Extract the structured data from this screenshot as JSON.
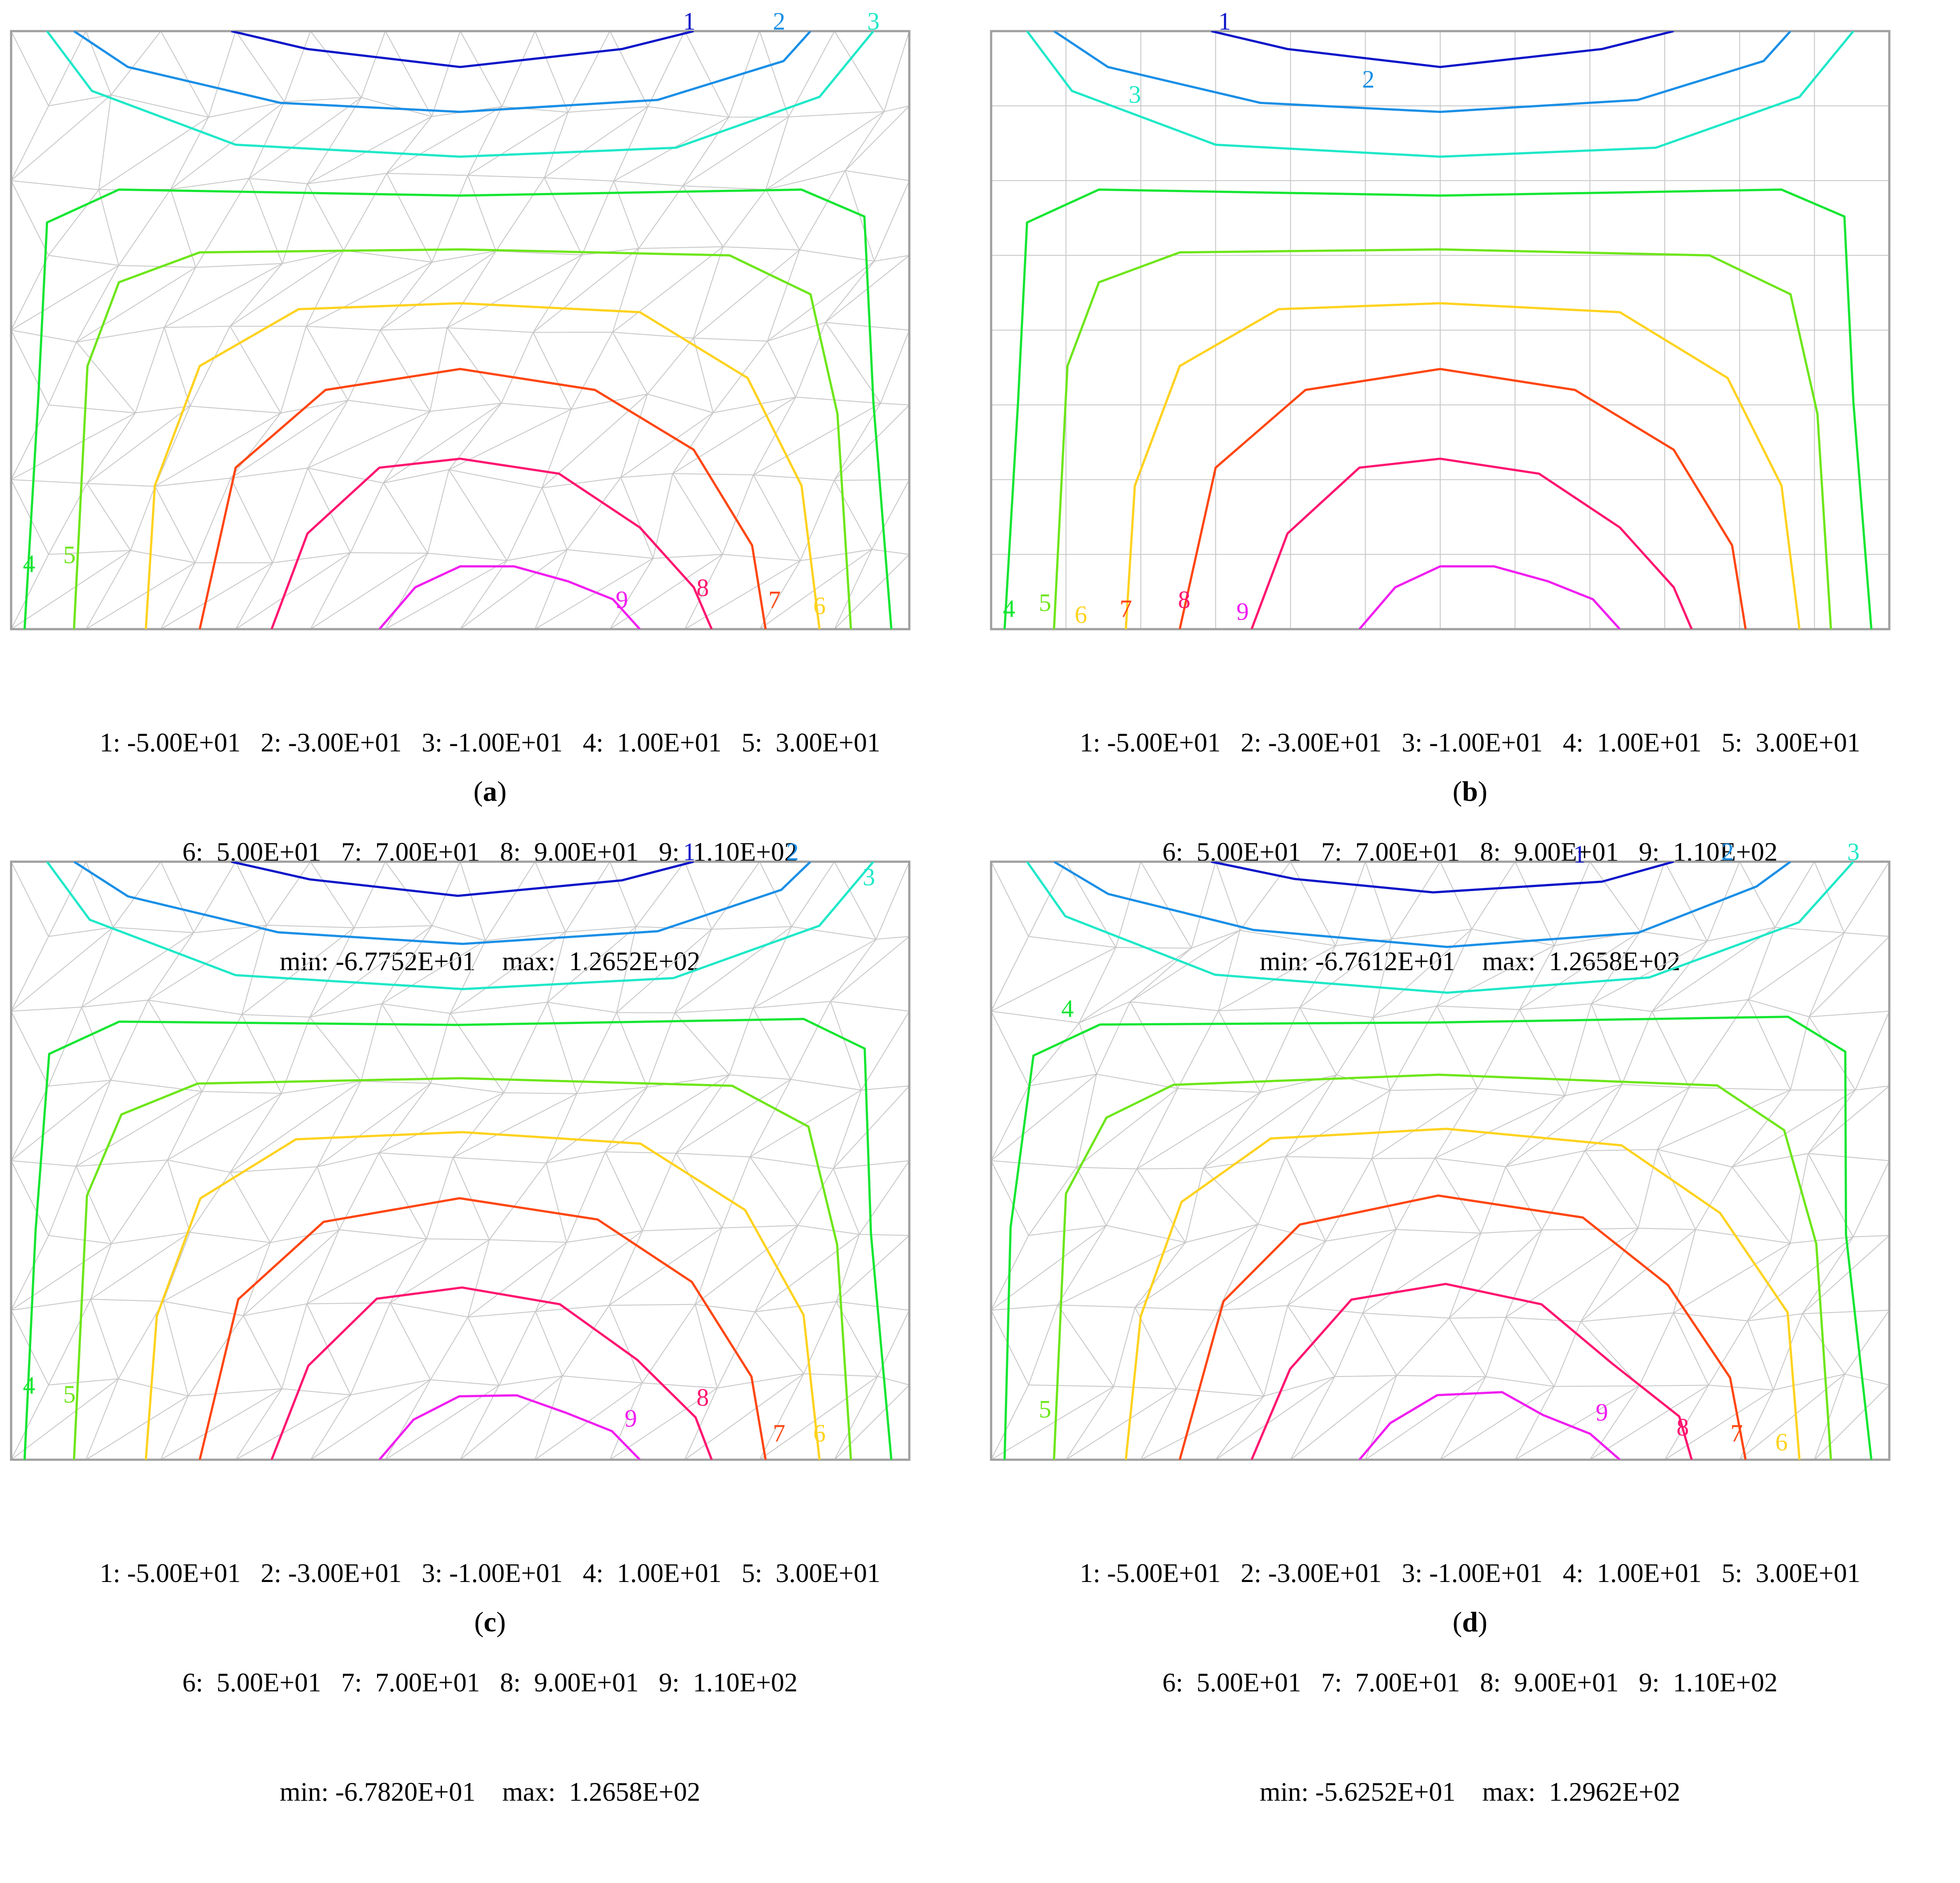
{
  "figure": {
    "contour_colors": [
      "#0a14c8",
      "#1a8fe6",
      "#1fe8c8",
      "#14e632",
      "#6ee61a",
      "#ffd21e",
      "#ff4610",
      "#ff1470",
      "#f01ef0"
    ],
    "mesh_color": "#c8c8c8",
    "frame_color": "#a0a0a0"
  },
  "chart_data": [
    {
      "type": "contour",
      "panel": "a",
      "caption_letter": "a",
      "mesh": "unstructured-triangular",
      "contour_levels": [
        {
          "label": "1",
          "value": -50
        },
        {
          "label": "2",
          "value": -30
        },
        {
          "label": "3",
          "value": -10
        },
        {
          "label": "4",
          "value": 10
        },
        {
          "label": "5",
          "value": 30
        },
        {
          "label": "6",
          "value": 50
        },
        {
          "label": "7",
          "value": 70
        },
        {
          "label": "8",
          "value": 90
        },
        {
          "label": "9",
          "value": 110
        }
      ],
      "legend_line1": "1: -5.00E+01   2: -3.00E+01   3: -1.00E+01   4:  1.00E+01   5:  3.00E+01",
      "legend_line2": "6:  5.00E+01   7:  7.00E+01   8:  9.00E+01   9:  1.10E+02",
      "range_text": "min: -6.7752E+01    max:  1.2652E+02",
      "min": -67.752,
      "max": 126.52
    },
    {
      "type": "contour",
      "panel": "b",
      "caption_letter": "b",
      "mesh": "structured-rectangular",
      "contour_levels": [
        {
          "label": "1",
          "value": -50
        },
        {
          "label": "2",
          "value": -30
        },
        {
          "label": "3",
          "value": -10
        },
        {
          "label": "4",
          "value": 10
        },
        {
          "label": "5",
          "value": 30
        },
        {
          "label": "6",
          "value": 50
        },
        {
          "label": "7",
          "value": 70
        },
        {
          "label": "8",
          "value": 90
        },
        {
          "label": "9",
          "value": 110
        }
      ],
      "legend_line1": "1: -5.00E+01   2: -3.00E+01   3: -1.00E+01   4:  1.00E+01   5:  3.00E+01",
      "legend_line2": "6:  5.00E+01   7:  7.00E+01   8:  9.00E+01   9:  1.10E+02",
      "range_text": "min: -6.7612E+01    max:  1.2658E+02",
      "min": -67.612,
      "max": 126.58
    },
    {
      "type": "contour",
      "panel": "c",
      "caption_letter": "c",
      "mesh": "unstructured-triangular",
      "contour_levels": [
        {
          "label": "1",
          "value": -50
        },
        {
          "label": "2",
          "value": -30
        },
        {
          "label": "3",
          "value": -10
        },
        {
          "label": "4",
          "value": 10
        },
        {
          "label": "5",
          "value": 30
        },
        {
          "label": "6",
          "value": 50
        },
        {
          "label": "7",
          "value": 70
        },
        {
          "label": "8",
          "value": 90
        },
        {
          "label": "9",
          "value": 110
        }
      ],
      "legend_line1": "1: -5.00E+01   2: -3.00E+01   3: -1.00E+01   4:  1.00E+01   5:  3.00E+01",
      "legend_line2": "6:  5.00E+01   7:  7.00E+01   8:  9.00E+01   9:  1.10E+02",
      "range_text": "min: -6.7820E+01    max:  1.2658E+02",
      "min": -67.82,
      "max": 126.58
    },
    {
      "type": "contour",
      "panel": "d",
      "caption_letter": "d",
      "mesh": "unstructured-triangular",
      "contour_levels": [
        {
          "label": "1",
          "value": -50
        },
        {
          "label": "2",
          "value": -30
        },
        {
          "label": "3",
          "value": -10
        },
        {
          "label": "4",
          "value": 10
        },
        {
          "label": "5",
          "value": 30
        },
        {
          "label": "6",
          "value": 50
        },
        {
          "label": "7",
          "value": 70
        },
        {
          "label": "8",
          "value": 90
        },
        {
          "label": "9",
          "value": 110
        }
      ],
      "legend_line1": "1: -5.00E+01   2: -3.00E+01   3: -1.00E+01   4:  1.00E+01   5:  3.00E+01",
      "legend_line2": "6:  5.00E+01   7:  7.00E+01   8:  9.00E+01   9:  1.10E+02",
      "range_text": "min: -5.6252E+01    max:  1.2962E+02",
      "min": -56.252,
      "max": 129.62
    }
  ]
}
